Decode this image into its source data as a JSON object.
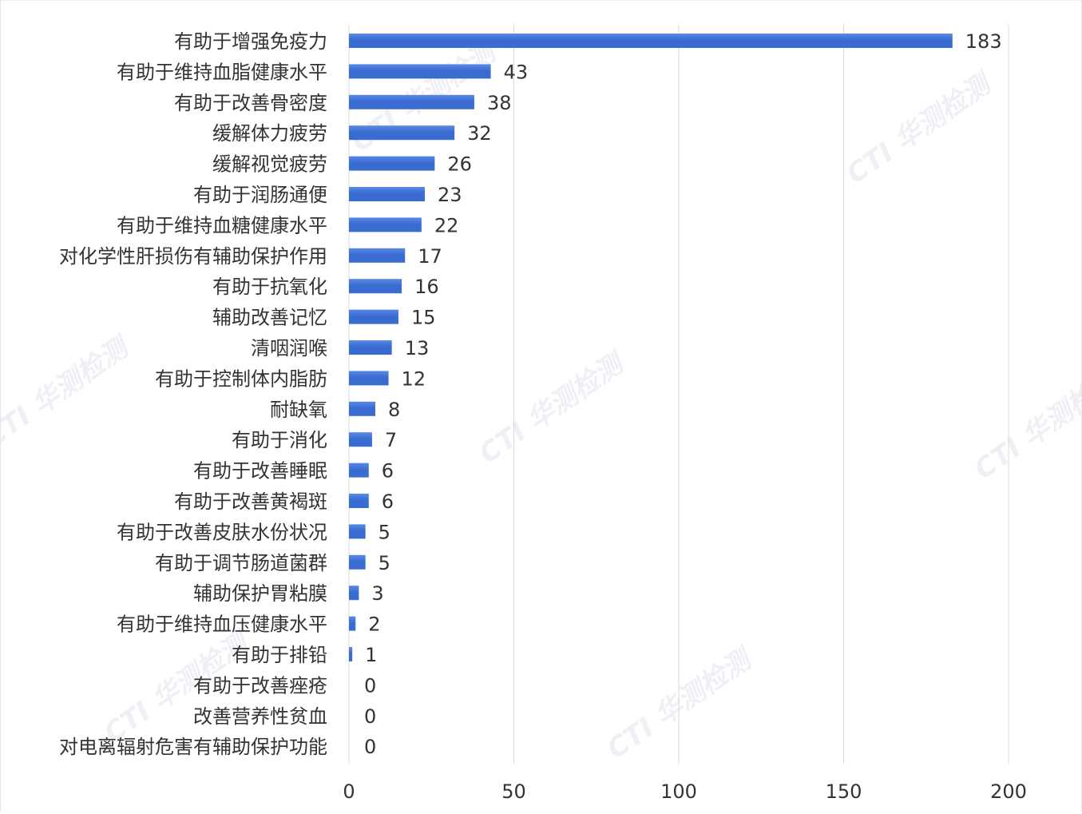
{
  "chart_data": {
    "type": "bar",
    "orientation": "horizontal",
    "categories": [
      "有助于增强免疫力",
      "有助于维持血脂健康水平",
      "有助于改善骨密度",
      "缓解体力疲劳",
      "缓解视觉疲劳",
      "有助于润肠通便",
      "有助于维持血糖健康水平",
      "对化学性肝损伤有辅助保护作用",
      "有助于抗氧化",
      "辅助改善记忆",
      "清咽润喉",
      "有助于控制体内脂肪",
      "耐缺氧",
      "有助于消化",
      "有助于改善睡眠",
      "有助于改善黄褐斑",
      "有助于改善皮肤水份状况",
      "有助于调节肠道菌群",
      "辅助保护胃粘膜",
      "有助于维持血压健康水平",
      "有助于排铅",
      "有助于改善痤疮",
      "改善营养性贫血",
      "对电离辐射危害有辅助保护功能"
    ],
    "values": [
      183,
      43,
      38,
      32,
      26,
      23,
      22,
      17,
      16,
      15,
      13,
      12,
      8,
      7,
      6,
      6,
      5,
      5,
      3,
      2,
      1,
      0,
      0,
      0
    ],
    "value_labels": [
      "183",
      "43",
      "38",
      "32",
      "26",
      "23",
      "22",
      "17",
      "16",
      "15",
      "13",
      "12",
      "8",
      "7",
      "6",
      "6",
      "5",
      "5",
      "3",
      "2",
      "1",
      "0",
      "0",
      "0"
    ],
    "xlim": [
      0,
      200
    ],
    "xticks": [
      0,
      50,
      100,
      150,
      200
    ],
    "xtick_labels": [
      "0",
      "50",
      "100",
      "150",
      "200"
    ],
    "title": "",
    "xlabel": "",
    "ylabel": "",
    "grid": "vertical",
    "legend": "none",
    "colors": {
      "bar": "#3a6bd0",
      "bar_light": "#5b8ae6",
      "grid": "#d9d9d9",
      "text": "#333333"
    },
    "watermark": "CTI 华测检测"
  }
}
